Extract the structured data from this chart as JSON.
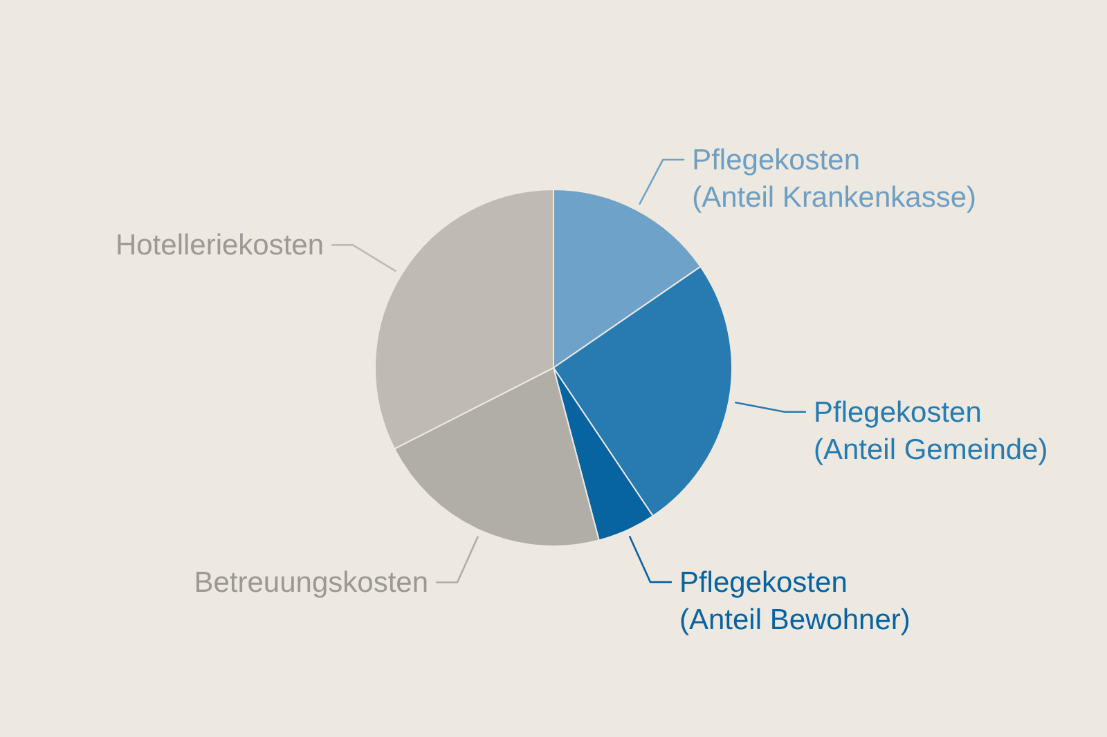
{
  "chart_data": {
    "type": "pie",
    "categories": [
      "Pflegekosten\n(Anteil Krankenkasse)",
      "Pflegekosten\n(Anteil Gemeinde)",
      "Pflegekosten\n(Anteil Bewohner)",
      "Betreuungskosten",
      "Hotelleriekosten"
    ],
    "values": [
      15.4,
      25.2,
      5.3,
      21.6,
      32.5
    ],
    "colors": [
      "#6fa2c8",
      "#277bb1",
      "#0764a1",
      "#b1aea7",
      "#bfbbb4"
    ]
  }
}
